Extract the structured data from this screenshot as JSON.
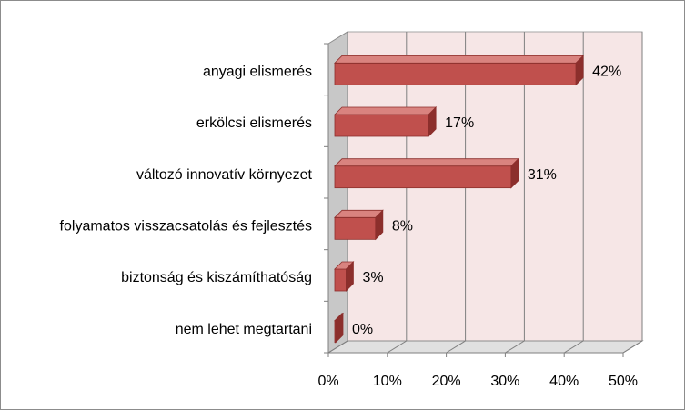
{
  "chart_data": {
    "type": "bar",
    "orientation": "horizontal",
    "style": "3d-clustered-bar",
    "categories": [
      "anyagi elismerés",
      "erkölcsi elismerés",
      "változó innovatív környezet",
      "folyamatos visszacsatolás és fejlesztés",
      "biztonság és kiszámíthatóság",
      "nem lehet megtartani"
    ],
    "values": [
      42,
      17,
      31,
      8,
      3,
      0
    ],
    "data_labels": [
      "42%",
      "17%",
      "31%",
      "8%",
      "3%",
      "0%"
    ],
    "xlim": [
      0,
      50
    ],
    "x_ticks": [
      0,
      10,
      20,
      30,
      40,
      50
    ],
    "x_tick_labels": [
      "0%",
      "10%",
      "20%",
      "30%",
      "40%",
      "50%"
    ],
    "grid": "vertical",
    "legend": "none",
    "colors": {
      "bar_front": "#c0504d",
      "bar_top": "#d9837f",
      "bar_side": "#8c2f2c",
      "plot_wall": "#f6e6e6",
      "grid": "#7f7f7f"
    }
  }
}
